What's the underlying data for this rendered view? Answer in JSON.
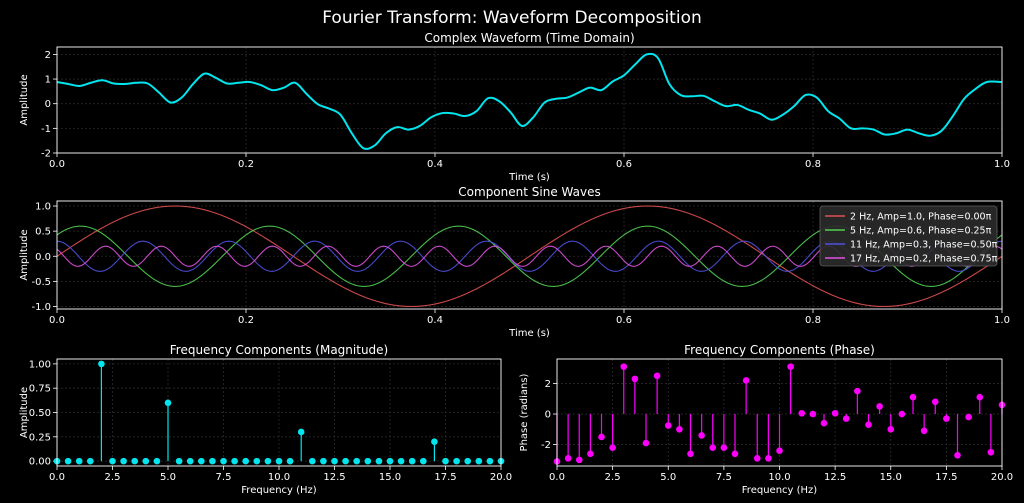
{
  "suptitle": "Fourier Transform: Waveform Decomposition",
  "chart_data": [
    {
      "type": "line",
      "title": "Complex Waveform (Time Domain)",
      "xlabel": "Time (s)",
      "ylabel": "Amplitude",
      "xlim": [
        0,
        1
      ],
      "ylim": [
        -2,
        2.3
      ],
      "xticks": [
        "0.0",
        "0.2",
        "0.4",
        "0.6",
        "0.8",
        "1.0"
      ],
      "yticks": [
        "-2",
        "-1",
        "0",
        "1",
        "2"
      ],
      "grid": true,
      "color": "#00e5ee",
      "x": [
        0,
        0.012,
        0.024,
        0.036,
        0.048,
        0.06,
        0.072,
        0.084,
        0.096,
        0.108,
        0.12,
        0.132,
        0.144,
        0.156,
        0.168,
        0.18,
        0.192,
        0.204,
        0.216,
        0.228,
        0.24,
        0.252,
        0.264,
        0.276,
        0.288,
        0.3,
        0.312,
        0.324,
        0.336,
        0.348,
        0.36,
        0.372,
        0.384,
        0.396,
        0.408,
        0.42,
        0.432,
        0.444,
        0.456,
        0.468,
        0.48,
        0.492,
        0.504,
        0.516,
        0.528,
        0.54,
        0.552,
        0.564,
        0.576,
        0.588,
        0.6,
        0.612,
        0.624,
        0.636,
        0.648,
        0.66,
        0.672,
        0.684,
        0.696,
        0.708,
        0.72,
        0.732,
        0.744,
        0.756,
        0.768,
        0.78,
        0.792,
        0.804,
        0.816,
        0.828,
        0.84,
        0.852,
        0.864,
        0.876,
        0.888,
        0.9,
        0.912,
        0.924,
        0.936,
        0.948,
        0.96,
        0.972,
        0.984,
        1.0
      ],
      "y": [
        0.88,
        0.8,
        0.72,
        0.85,
        0.95,
        0.82,
        0.8,
        0.85,
        0.82,
        0.45,
        0.05,
        0.25,
        0.8,
        1.22,
        1.05,
        0.82,
        0.85,
        0.88,
        0.75,
        0.55,
        0.65,
        0.85,
        0.4,
        -0.02,
        -0.2,
        -0.45,
        -1.2,
        -1.8,
        -1.7,
        -1.2,
        -0.95,
        -1.05,
        -0.9,
        -0.55,
        -0.38,
        -0.4,
        -0.5,
        -0.3,
        0.22,
        0.1,
        -0.35,
        -0.9,
        -0.55,
        0.05,
        0.2,
        0.25,
        0.45,
        0.65,
        0.55,
        0.9,
        1.15,
        1.6,
        2.0,
        1.85,
        0.8,
        0.35,
        0.3,
        0.32,
        0.1,
        -0.1,
        -0.05,
        -0.25,
        -0.4,
        -0.65,
        -0.45,
        -0.1,
        0.35,
        0.25,
        -0.3,
        -0.6,
        -1.0,
        -1.0,
        -1.05,
        -1.25,
        -1.2,
        -1.05,
        -1.2,
        -1.3,
        -1.1,
        -0.5,
        0.2,
        0.6,
        0.88,
        0.88
      ]
    },
    {
      "type": "line",
      "title": "Component Sine Waves",
      "xlabel": "Time (s)",
      "ylabel": "Amplitude",
      "xlim": [
        0,
        1
      ],
      "ylim": [
        -1.05,
        1.1
      ],
      "xticks": [
        "0.0",
        "0.2",
        "0.4",
        "0.6",
        "0.8",
        "1.0"
      ],
      "yticks": [
        "-1.0",
        "-0.5",
        "0.0",
        "0.5",
        "1.0"
      ],
      "grid": true,
      "legend_position": "top-right",
      "series": [
        {
          "name": "2 Hz, Amp=1.0, Phase=0.00π",
          "freq": 2,
          "amp": 1.0,
          "phase_pi": 0.0,
          "color": "#e05050"
        },
        {
          "name": "5 Hz, Amp=0.6, Phase=0.25π",
          "freq": 5,
          "amp": 0.6,
          "phase_pi": 0.25,
          "color": "#50d050"
        },
        {
          "name": "11 Hz, Amp=0.3, Phase=0.50π",
          "freq": 11,
          "amp": 0.3,
          "phase_pi": 0.5,
          "color": "#5050e0"
        },
        {
          "name": "17 Hz, Amp=0.2, Phase=0.75π",
          "freq": 17,
          "amp": 0.2,
          "phase_pi": 0.75,
          "color": "#e050e0"
        }
      ]
    },
    {
      "type": "stem",
      "title": "Frequency Components (Magnitude)",
      "xlabel": "Frequency (Hz)",
      "ylabel": "Amplitude",
      "xlim": [
        0,
        20
      ],
      "ylim": [
        -0.05,
        1.05
      ],
      "xticks": [
        "0.0",
        "2.5",
        "5.0",
        "7.5",
        "10.0",
        "12.5",
        "15.0",
        "17.5",
        "20.0"
      ],
      "yticks": [
        "0.00",
        "0.25",
        "0.50",
        "0.75",
        "1.00"
      ],
      "grid": true,
      "color": "#00e5ee",
      "x": [
        0,
        0.5,
        1,
        1.5,
        2,
        2.5,
        3,
        3.5,
        4,
        4.5,
        5,
        5.5,
        6,
        6.5,
        7,
        7.5,
        8,
        8.5,
        9,
        9.5,
        10,
        10.5,
        11,
        11.5,
        12,
        12.5,
        13,
        13.5,
        14,
        14.5,
        15,
        15.5,
        16,
        16.5,
        17,
        17.5,
        18,
        18.5,
        19,
        19.5,
        20
      ],
      "values": [
        0,
        0,
        0,
        0,
        1.0,
        0,
        0,
        0,
        0,
        0,
        0.6,
        0,
        0,
        0,
        0,
        0,
        0,
        0,
        0,
        0,
        0,
        0,
        0.3,
        0,
        0,
        0,
        0,
        0,
        0,
        0,
        0,
        0,
        0,
        0,
        0.2,
        0,
        0,
        0,
        0,
        0,
        0
      ]
    },
    {
      "type": "stem",
      "title": "Frequency Components (Phase)",
      "xlabel": "Frequency (Hz)",
      "ylabel": "Phase (radians)",
      "xlim": [
        0,
        20
      ],
      "ylim": [
        -3.4,
        3.6
      ],
      "xticks": [
        "0.0",
        "2.5",
        "5.0",
        "7.5",
        "10.0",
        "12.5",
        "15.0",
        "17.5",
        "20.0"
      ],
      "yticks": [
        "-2",
        "0",
        "2"
      ],
      "grid": true,
      "color": "#ff00ff",
      "x": [
        0,
        0.5,
        1,
        1.5,
        2,
        2.5,
        3,
        3.5,
        4,
        4.5,
        5,
        5.5,
        6,
        6.5,
        7,
        7.5,
        8,
        8.5,
        9,
        9.5,
        10,
        10.5,
        11,
        11.5,
        12,
        12.5,
        13,
        13.5,
        14,
        14.5,
        15,
        15.5,
        16,
        16.5,
        17,
        17.5,
        18,
        18.5,
        19,
        19.5,
        20
      ],
      "values": [
        -3.1,
        -2.9,
        -3.0,
        -2.6,
        -1.5,
        -2.2,
        3.1,
        2.3,
        -1.9,
        2.5,
        -0.75,
        -1.0,
        -2.6,
        -1.4,
        -2.2,
        -2.2,
        -2.6,
        2.2,
        -2.9,
        -2.9,
        -2.4,
        3.1,
        0.05,
        0.0,
        -0.6,
        0.05,
        -0.3,
        1.5,
        -0.7,
        0.5,
        -1.0,
        0.0,
        1.1,
        -1.1,
        0.8,
        -0.3,
        -2.7,
        -0.2,
        1.1,
        -2.5,
        0.6
      ]
    }
  ]
}
